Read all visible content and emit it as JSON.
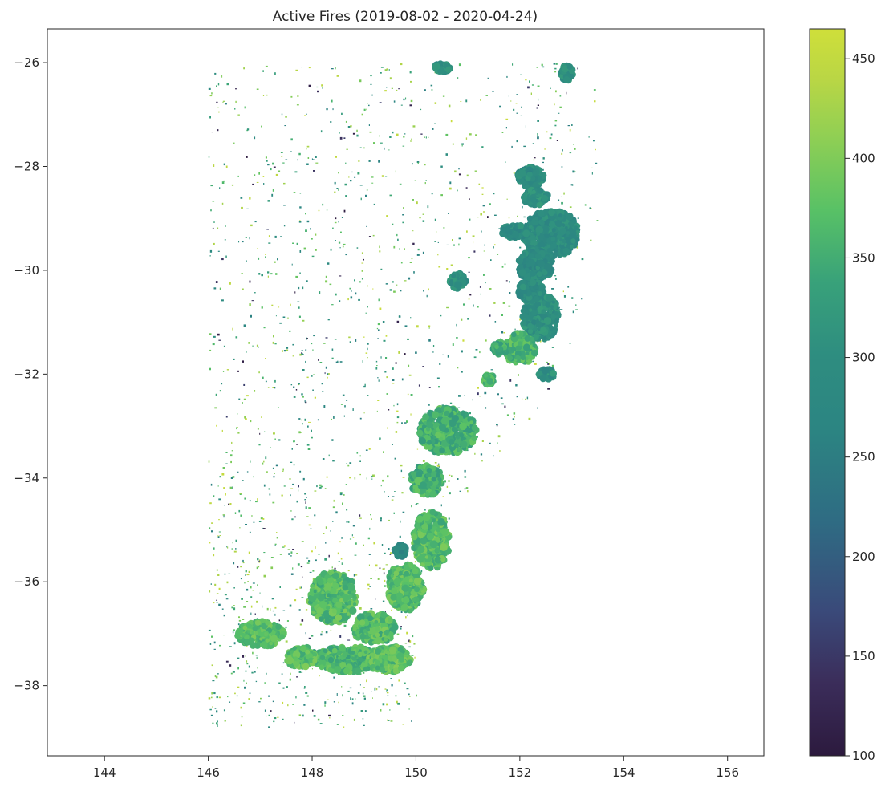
{
  "chart_data": {
    "type": "scatter",
    "title": "Active Fires (2019-08-02 - 2020-04-24)",
    "xlabel": "",
    "ylabel": "",
    "xlim": [
      142.9,
      156.7
    ],
    "ylim": [
      -39.35,
      -25.35
    ],
    "x_ticks": [
      144,
      146,
      148,
      150,
      152,
      154,
      156
    ],
    "x_tick_labels": [
      "144",
      "146",
      "148",
      "150",
      "152",
      "154",
      "156"
    ],
    "y_ticks": [
      -26,
      -28,
      -30,
      -32,
      -34,
      -36,
      -38
    ],
    "y_tick_labels": [
      "−26",
      "−28",
      "−30",
      "−32",
      "−34",
      "−36",
      "−38"
    ],
    "grid": false,
    "colorbar": {
      "colormap": "viridis",
      "range": [
        100,
        465
      ],
      "ticks": [
        100,
        150,
        200,
        250,
        300,
        350,
        400,
        450
      ],
      "tick_labels": [
        "100",
        "150",
        "200",
        "250",
        "300",
        "350",
        "400",
        "450"
      ]
    },
    "clusters": [
      {
        "x": 152.6,
        "y": -29.3,
        "rx": 0.55,
        "ry": 0.45,
        "value": 290
      },
      {
        "x": 152.3,
        "y": -29.9,
        "rx": 0.35,
        "ry": 0.3,
        "value": 285
      },
      {
        "x": 151.9,
        "y": -29.25,
        "rx": 0.25,
        "ry": 0.12,
        "value": 290
      },
      {
        "x": 152.2,
        "y": -28.2,
        "rx": 0.25,
        "ry": 0.2,
        "value": 290
      },
      {
        "x": 152.3,
        "y": -28.6,
        "rx": 0.25,
        "ry": 0.15,
        "value": 300
      },
      {
        "x": 152.4,
        "y": -30.9,
        "rx": 0.35,
        "ry": 0.45,
        "value": 300
      },
      {
        "x": 152.2,
        "y": -30.4,
        "rx": 0.25,
        "ry": 0.2,
        "value": 290
      },
      {
        "x": 152.0,
        "y": -31.5,
        "rx": 0.3,
        "ry": 0.3,
        "value": 360
      },
      {
        "x": 152.5,
        "y": -32.0,
        "rx": 0.15,
        "ry": 0.1,
        "value": 300
      },
      {
        "x": 150.6,
        "y": -33.1,
        "rx": 0.55,
        "ry": 0.45,
        "value": 355
      },
      {
        "x": 150.2,
        "y": -34.05,
        "rx": 0.3,
        "ry": 0.3,
        "value": 355
      },
      {
        "x": 150.3,
        "y": -35.2,
        "rx": 0.35,
        "ry": 0.55,
        "value": 370
      },
      {
        "x": 149.8,
        "y": -36.1,
        "rx": 0.35,
        "ry": 0.45,
        "value": 370
      },
      {
        "x": 149.2,
        "y": -36.9,
        "rx": 0.4,
        "ry": 0.3,
        "value": 370
      },
      {
        "x": 148.4,
        "y": -36.3,
        "rx": 0.45,
        "ry": 0.5,
        "value": 370
      },
      {
        "x": 148.7,
        "y": -37.5,
        "rx": 0.65,
        "ry": 0.25,
        "value": 365
      },
      {
        "x": 149.5,
        "y": -37.5,
        "rx": 0.4,
        "ry": 0.25,
        "value": 375
      },
      {
        "x": 147.8,
        "y": -37.45,
        "rx": 0.3,
        "ry": 0.2,
        "value": 370
      },
      {
        "x": 147.0,
        "y": -37.0,
        "rx": 0.45,
        "ry": 0.25,
        "value": 370
      },
      {
        "x": 150.8,
        "y": -30.2,
        "rx": 0.15,
        "ry": 0.15,
        "value": 300
      },
      {
        "x": 149.7,
        "y": -35.4,
        "rx": 0.12,
        "ry": 0.12,
        "value": 280
      },
      {
        "x": 151.6,
        "y": -31.5,
        "rx": 0.12,
        "ry": 0.12,
        "value": 350
      },
      {
        "x": 151.4,
        "y": -32.1,
        "rx": 0.1,
        "ry": 0.1,
        "value": 360
      },
      {
        "x": 150.5,
        "y": -26.1,
        "rx": 0.15,
        "ry": 0.08,
        "value": 300
      },
      {
        "x": 152.9,
        "y": -26.2,
        "rx": 0.12,
        "ry": 0.15,
        "value": 300
      }
    ],
    "scattered_points": {
      "extent": {
        "x": [
          146.0,
          153.5
        ],
        "y": [
          -38.8,
          -26.0
        ]
      },
      "value_range": [
        100,
        460
      ],
      "description_count": 1700
    }
  }
}
